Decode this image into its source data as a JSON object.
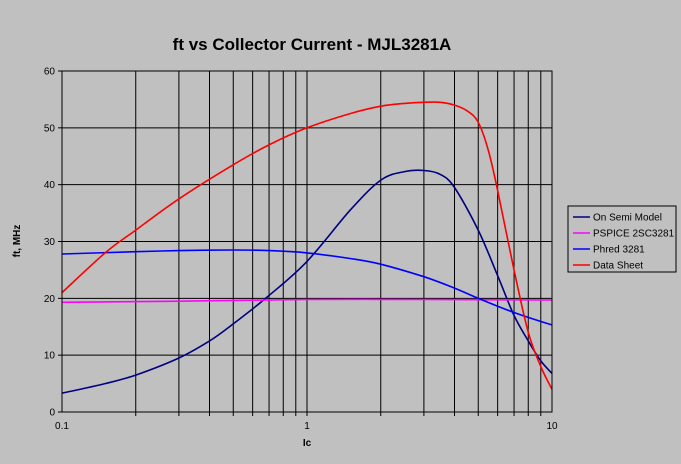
{
  "chart_data": {
    "type": "line",
    "title": "ft vs Collector Current - MJL3281A",
    "xlabel": "Ic",
    "ylabel": "ft, MHz",
    "xscale": "log",
    "xlim": [
      0.1,
      10
    ],
    "ylim": [
      0,
      60
    ],
    "xticks": [
      0.1,
      1,
      10
    ],
    "xtick_labels": [
      "0.1",
      "1",
      "10"
    ],
    "yticks": [
      0,
      10,
      20,
      30,
      40,
      50,
      60
    ],
    "ytick_labels": [
      "0",
      "10",
      "20",
      "30",
      "40",
      "50",
      "60"
    ],
    "grid": true,
    "legend": "right",
    "series": [
      {
        "name": "On Semi Model",
        "color": "#000080",
        "x": [
          0.1,
          0.15,
          0.2,
          0.3,
          0.4,
          0.5,
          0.7,
          1.0,
          1.5,
          2.0,
          2.5,
          3.0,
          3.5,
          4.0,
          5.0,
          6.0,
          7.0,
          8.0,
          9.0,
          10.0
        ],
        "y": [
          3.3,
          5.0,
          6.5,
          9.5,
          12.5,
          15.5,
          20.5,
          26.5,
          35.5,
          40.8,
          42.3,
          42.5,
          41.8,
          39.5,
          32.0,
          24.0,
          17.0,
          12.5,
          9.0,
          6.8
        ]
      },
      {
        "name": "PSPICE 2SC3281",
        "color": "#ff00ff",
        "x": [
          0.1,
          0.3,
          1.0,
          3.0,
          10.0
        ],
        "y": [
          19.3,
          19.5,
          19.8,
          19.8,
          19.7
        ]
      },
      {
        "name": "Phred 3281",
        "color": "#0000ff",
        "x": [
          0.1,
          0.2,
          0.3,
          0.5,
          0.7,
          1.0,
          1.5,
          2.0,
          3.0,
          4.0,
          5.0,
          7.0,
          10.0
        ],
        "y": [
          27.8,
          28.2,
          28.4,
          28.5,
          28.4,
          28.0,
          27.0,
          26.0,
          23.8,
          21.8,
          20.0,
          17.5,
          15.3
        ]
      },
      {
        "name": "Data Sheet",
        "color": "#ff0000",
        "x": [
          0.1,
          0.15,
          0.2,
          0.3,
          0.5,
          0.7,
          1.0,
          1.5,
          2.0,
          2.5,
          3.0,
          3.5,
          4.0,
          4.5,
          5.0,
          5.5,
          6.0,
          7.0,
          8.0,
          9.0,
          10.0
        ],
        "y": [
          21.0,
          28.0,
          32.0,
          37.5,
          43.5,
          47.0,
          50.0,
          52.5,
          53.8,
          54.3,
          54.5,
          54.5,
          54.0,
          53.0,
          51.0,
          46.0,
          39.0,
          25.0,
          14.0,
          8.0,
          4.0
        ]
      }
    ]
  }
}
